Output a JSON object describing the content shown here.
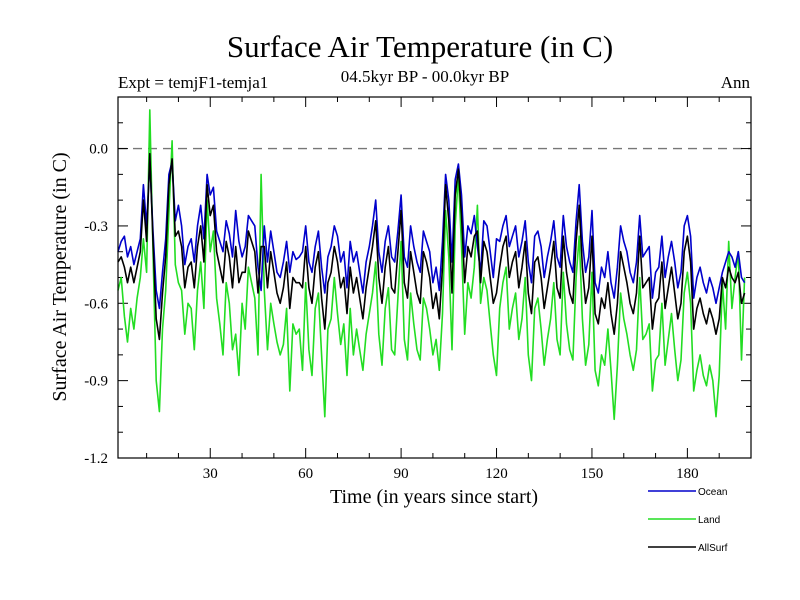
{
  "chart_data": {
    "type": "line",
    "title": "Surface Air Temperature (in C)",
    "subtitle": "04.5kyr BP - 00.0kyr BP",
    "left_label": "Expt = temjF1-temja1",
    "right_label": "Ann",
    "xlabel": "Time (in years since start)",
    "ylabel": "Surface Air Temperature (in C)",
    "xlim": [
      1,
      200
    ],
    "ylim": [
      -1.2,
      0.2
    ],
    "x_ticks": [
      30,
      60,
      90,
      120,
      150,
      180
    ],
    "x_tick_labels": [
      "30",
      "60",
      "90",
      "120",
      "150",
      "180"
    ],
    "y_ticks": [
      0.0,
      -0.3,
      -0.6,
      -0.9,
      -1.2
    ],
    "y_tick_labels": [
      "0.0",
      "-0.3",
      "-0.6",
      "-0.9",
      "-1.2"
    ],
    "reference_line": 0.0,
    "grid": false,
    "legend_position": "bottom-right",
    "series": [
      {
        "name": "Ocean",
        "color": "#0000cc",
        "values": [
          -0.4,
          -0.36,
          -0.34,
          -0.42,
          -0.38,
          -0.45,
          -0.4,
          -0.35,
          -0.14,
          -0.3,
          -0.05,
          -0.32,
          -0.55,
          -0.62,
          -0.48,
          -0.35,
          -0.1,
          -0.05,
          -0.28,
          -0.22,
          -0.3,
          -0.45,
          -0.38,
          -0.35,
          -0.44,
          -0.3,
          -0.22,
          -0.35,
          -0.1,
          -0.18,
          -0.15,
          -0.32,
          -0.36,
          -0.4,
          -0.28,
          -0.33,
          -0.42,
          -0.24,
          -0.36,
          -0.42,
          -0.38,
          -0.26,
          -0.28,
          -0.3,
          -0.46,
          -0.55,
          -0.3,
          -0.44,
          -0.32,
          -0.4,
          -0.48,
          -0.5,
          -0.44,
          -0.36,
          -0.48,
          -0.4,
          -0.43,
          -0.42,
          -0.4,
          -0.3,
          -0.44,
          -0.48,
          -0.38,
          -0.32,
          -0.46,
          -0.56,
          -0.42,
          -0.38,
          -0.3,
          -0.34,
          -0.44,
          -0.4,
          -0.54,
          -0.36,
          -0.44,
          -0.4,
          -0.48,
          -0.56,
          -0.44,
          -0.38,
          -0.3,
          -0.2,
          -0.4,
          -0.48,
          -0.36,
          -0.3,
          -0.42,
          -0.44,
          -0.32,
          -0.18,
          -0.42,
          -0.46,
          -0.3,
          -0.38,
          -0.44,
          -0.48,
          -0.32,
          -0.36,
          -0.4,
          -0.52,
          -0.46,
          -0.55,
          -0.36,
          -0.1,
          -0.2,
          -0.44,
          -0.12,
          -0.06,
          -0.18,
          -0.42,
          -0.3,
          -0.33,
          -0.26,
          -0.38,
          -0.48,
          -0.28,
          -0.3,
          -0.4,
          -0.5,
          -0.35,
          -0.36,
          -0.3,
          -0.26,
          -0.38,
          -0.34,
          -0.3,
          -0.42,
          -0.36,
          -0.28,
          -0.44,
          -0.52,
          -0.34,
          -0.32,
          -0.38,
          -0.5,
          -0.42,
          -0.36,
          -0.28,
          -0.42,
          -0.46,
          -0.26,
          -0.38,
          -0.44,
          -0.48,
          -0.28,
          -0.14,
          -0.36,
          -0.48,
          -0.42,
          -0.24,
          -0.52,
          -0.56,
          -0.46,
          -0.5,
          -0.4,
          -0.52,
          -0.58,
          -0.46,
          -0.3,
          -0.36,
          -0.4,
          -0.48,
          -0.52,
          -0.44,
          -0.26,
          -0.42,
          -0.4,
          -0.38,
          -0.58,
          -0.48,
          -0.46,
          -0.34,
          -0.5,
          -0.42,
          -0.36,
          -0.44,
          -0.54,
          -0.48,
          -0.3,
          -0.26,
          -0.34,
          -0.58,
          -0.5,
          -0.46,
          -0.52,
          -0.56,
          -0.5,
          -0.54,
          -0.6,
          -0.54,
          -0.48,
          -0.44,
          -0.4,
          -0.42,
          -0.46,
          -0.4,
          -0.5,
          -0.52
        ]
      },
      {
        "name": "Land",
        "color": "#22dd22",
        "values": [
          -0.55,
          -0.5,
          -0.65,
          -0.75,
          -0.62,
          -0.7,
          -0.58,
          -0.5,
          -0.35,
          -0.48,
          0.15,
          -0.4,
          -0.9,
          -1.02,
          -0.7,
          -0.55,
          -0.25,
          0.03,
          -0.45,
          -0.52,
          -0.55,
          -0.72,
          -0.6,
          -0.62,
          -0.78,
          -0.55,
          -0.44,
          -0.62,
          -0.2,
          -0.4,
          -0.32,
          -0.58,
          -0.68,
          -0.8,
          -0.52,
          -0.6,
          -0.78,
          -0.72,
          -0.88,
          -0.6,
          -0.7,
          -0.46,
          -0.52,
          -0.58,
          -0.8,
          -0.1,
          -0.55,
          -0.78,
          -0.6,
          -0.68,
          -0.75,
          -0.8,
          -0.76,
          -0.62,
          -0.94,
          -0.68,
          -0.72,
          -0.7,
          -0.86,
          -0.52,
          -0.78,
          -0.88,
          -0.62,
          -0.56,
          -0.8,
          -1.04,
          -0.7,
          -0.66,
          -0.5,
          -0.64,
          -0.76,
          -0.68,
          -0.88,
          -0.62,
          -0.8,
          -0.7,
          -0.78,
          -0.86,
          -0.72,
          -0.64,
          -0.56,
          -0.44,
          -0.72,
          -0.84,
          -0.62,
          -0.54,
          -0.78,
          -0.8,
          -0.58,
          -0.36,
          -0.74,
          -0.82,
          -0.56,
          -0.68,
          -0.78,
          -0.82,
          -0.58,
          -0.62,
          -0.7,
          -0.8,
          -0.74,
          -0.86,
          -0.64,
          -0.24,
          -0.42,
          -0.78,
          -0.3,
          -0.1,
          -0.38,
          -0.72,
          -0.52,
          -0.58,
          -0.46,
          -0.22,
          -0.6,
          -0.5,
          -0.55,
          -0.68,
          -0.8,
          -0.88,
          -0.62,
          -0.52,
          -0.46,
          -0.7,
          -0.62,
          -0.56,
          -0.74,
          -0.66,
          -0.5,
          -0.8,
          -0.9,
          -0.62,
          -0.58,
          -0.7,
          -0.84,
          -0.74,
          -0.66,
          -0.52,
          -0.74,
          -0.8,
          -0.48,
          -0.68,
          -0.78,
          -0.82,
          -0.5,
          -0.34,
          -0.66,
          -0.84,
          -0.76,
          -0.48,
          -0.86,
          -0.92,
          -0.8,
          -0.84,
          -0.7,
          -0.86,
          -1.05,
          -0.84,
          -0.56,
          -0.66,
          -0.72,
          -0.8,
          -0.86,
          -0.78,
          -0.5,
          -0.74,
          -0.72,
          -0.68,
          -0.94,
          -0.82,
          -0.8,
          -0.6,
          -0.84,
          -0.74,
          -0.64,
          -0.78,
          -0.9,
          -0.82,
          -0.56,
          -0.48,
          -0.6,
          -0.94,
          -0.86,
          -0.8,
          -0.88,
          -0.92,
          -0.84,
          -0.9,
          -1.04,
          -0.88,
          -0.52,
          -0.7,
          -0.36,
          -0.62,
          -0.5,
          -0.4,
          -0.82,
          -0.5
        ]
      },
      {
        "name": "AllSurf",
        "color": "#000000",
        "values": [
          -0.44,
          -0.42,
          -0.46,
          -0.52,
          -0.46,
          -0.52,
          -0.46,
          -0.4,
          -0.2,
          -0.36,
          -0.02,
          -0.36,
          -0.66,
          -0.74,
          -0.56,
          -0.42,
          -0.14,
          -0.04,
          -0.34,
          -0.32,
          -0.38,
          -0.54,
          -0.46,
          -0.44,
          -0.54,
          -0.38,
          -0.3,
          -0.44,
          -0.14,
          -0.26,
          -0.22,
          -0.4,
          -0.46,
          -0.52,
          -0.36,
          -0.42,
          -0.54,
          -0.38,
          -0.52,
          -0.48,
          -0.48,
          -0.32,
          -0.36,
          -0.4,
          -0.56,
          -0.38,
          -0.38,
          -0.54,
          -0.4,
          -0.48,
          -0.56,
          -0.6,
          -0.54,
          -0.44,
          -0.62,
          -0.5,
          -0.52,
          -0.52,
          -0.54,
          -0.38,
          -0.54,
          -0.6,
          -0.46,
          -0.4,
          -0.58,
          -0.7,
          -0.52,
          -0.48,
          -0.38,
          -0.44,
          -0.54,
          -0.5,
          -0.64,
          -0.46,
          -0.56,
          -0.5,
          -0.58,
          -0.66,
          -0.54,
          -0.46,
          -0.38,
          -0.28,
          -0.5,
          -0.6,
          -0.46,
          -0.38,
          -0.54,
          -0.56,
          -0.4,
          -0.24,
          -0.52,
          -0.58,
          -0.4,
          -0.48,
          -0.56,
          -0.6,
          -0.4,
          -0.44,
          -0.5,
          -0.62,
          -0.56,
          -0.66,
          -0.46,
          -0.14,
          -0.28,
          -0.56,
          -0.18,
          -0.08,
          -0.26,
          -0.52,
          -0.38,
          -0.42,
          -0.34,
          -0.32,
          -0.52,
          -0.36,
          -0.4,
          -0.5,
          -0.6,
          -0.56,
          -0.46,
          -0.38,
          -0.34,
          -0.5,
          -0.44,
          -0.4,
          -0.54,
          -0.46,
          -0.36,
          -0.56,
          -0.64,
          -0.44,
          -0.42,
          -0.5,
          -0.62,
          -0.54,
          -0.46,
          -0.36,
          -0.54,
          -0.58,
          -0.34,
          -0.48,
          -0.56,
          -0.6,
          -0.36,
          -0.22,
          -0.46,
          -0.6,
          -0.54,
          -0.34,
          -0.64,
          -0.68,
          -0.58,
          -0.62,
          -0.52,
          -0.64,
          -0.72,
          -0.6,
          -0.4,
          -0.46,
          -0.52,
          -0.6,
          -0.64,
          -0.56,
          -0.34,
          -0.54,
          -0.52,
          -0.5,
          -0.7,
          -0.6,
          -0.58,
          -0.44,
          -0.62,
          -0.54,
          -0.46,
          -0.56,
          -0.66,
          -0.6,
          -0.4,
          -0.34,
          -0.44,
          -0.7,
          -0.62,
          -0.58,
          -0.64,
          -0.68,
          -0.62,
          -0.66,
          -0.72,
          -0.66,
          -0.5,
          -0.54,
          -0.46,
          -0.5,
          -0.52,
          -0.48,
          -0.6,
          -0.56
        ]
      }
    ]
  }
}
